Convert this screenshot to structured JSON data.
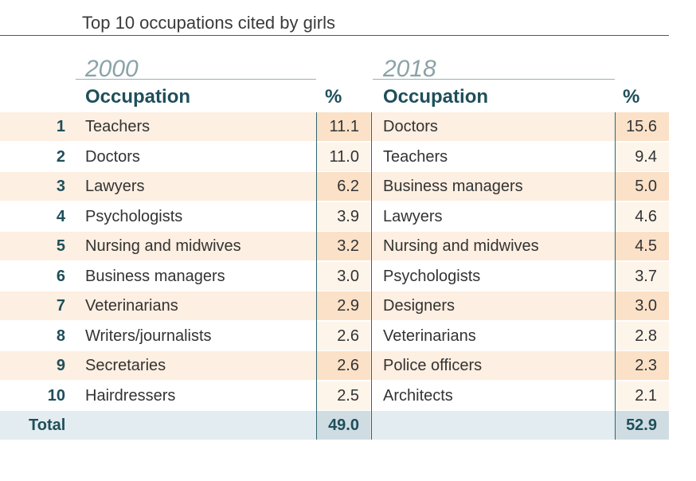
{
  "title": "Top 10 occupations cited by girls",
  "left": {
    "year": "2000",
    "header_occupation": "Occupation",
    "header_pct": "%",
    "rows": [
      {
        "rank": "1",
        "occupation": "Teachers",
        "pct": "11.1"
      },
      {
        "rank": "2",
        "occupation": "Doctors",
        "pct": "11.0"
      },
      {
        "rank": "3",
        "occupation": "Lawyers",
        "pct": "6.2"
      },
      {
        "rank": "4",
        "occupation": "Psychologists",
        "pct": "3.9"
      },
      {
        "rank": "5",
        "occupation": "Nursing and midwives",
        "pct": "3.2"
      },
      {
        "rank": "6",
        "occupation": "Business managers",
        "pct": "3.0"
      },
      {
        "rank": "7",
        "occupation": "Veterinarians",
        "pct": "2.9"
      },
      {
        "rank": "8",
        "occupation": "Writers/journalists",
        "pct": "2.6"
      },
      {
        "rank": "9",
        "occupation": "Secretaries",
        "pct": "2.6"
      },
      {
        "rank": "10",
        "occupation": "Hairdressers",
        "pct": "2.5"
      }
    ],
    "total": "49.0"
  },
  "right": {
    "year": "2018",
    "header_occupation": "Occupation",
    "header_pct": "%",
    "rows": [
      {
        "occupation": "Doctors",
        "pct": "15.6"
      },
      {
        "occupation": "Teachers",
        "pct": "9.4"
      },
      {
        "occupation": "Business managers",
        "pct": "5.0"
      },
      {
        "occupation": "Lawyers",
        "pct": "4.6"
      },
      {
        "occupation": "Nursing and midwives",
        "pct": "4.5"
      },
      {
        "occupation": "Psychologists",
        "pct": "3.7"
      },
      {
        "occupation": "Designers",
        "pct": "3.0"
      },
      {
        "occupation": "Veterinarians",
        "pct": "2.8"
      },
      {
        "occupation": "Police officers",
        "pct": "2.3"
      },
      {
        "occupation": "Architects",
        "pct": "2.1"
      }
    ],
    "total": "52.9"
  },
  "total_label": "Total"
}
